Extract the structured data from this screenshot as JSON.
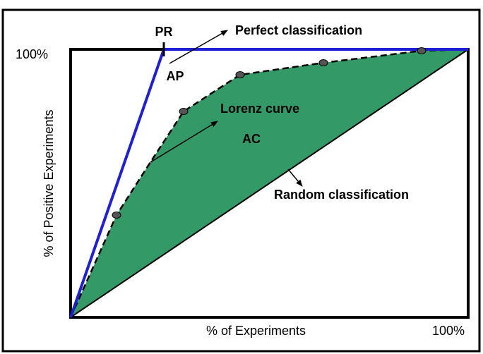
{
  "labels": {
    "pr": "PR",
    "perfect": "Perfect classification",
    "ap": "AP",
    "lorenz": "Lorenz curve",
    "ac": "AC",
    "random": "Random classification",
    "y_top": "100%",
    "y_axis": "% of Positive Experiments",
    "x_axis": "% of Experiments",
    "x_right": "100%"
  }
}
